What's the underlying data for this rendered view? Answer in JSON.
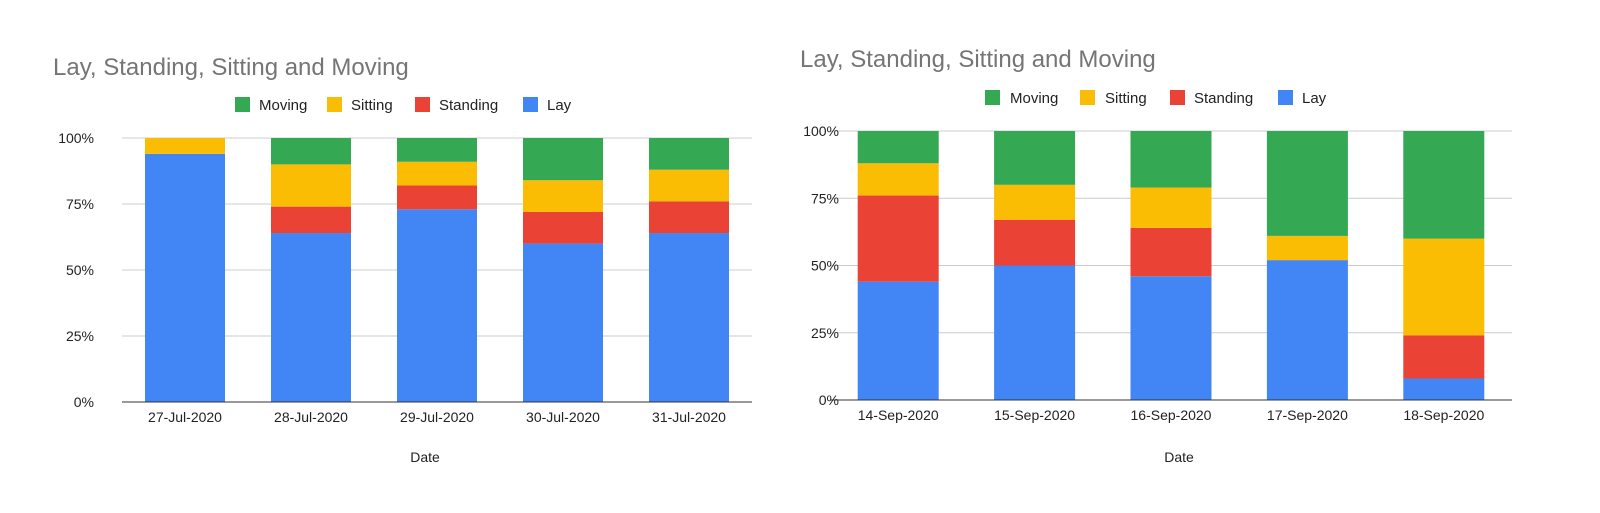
{
  "colors": {
    "Lay": "#4285F4",
    "Standing": "#EA4335",
    "Sitting": "#FBBC04",
    "Moving": "#34A853",
    "grid": "#cccccc",
    "axis": "#333333"
  },
  "chart_data": [
    {
      "type": "bar",
      "stacked": "percent",
      "title": "Lay, Standing, Sitting and Moving",
      "xlabel": "Date",
      "ylabel": "",
      "legend": {
        "position": "top",
        "entries": [
          "Moving",
          "Sitting",
          "Standing",
          "Lay"
        ]
      },
      "y_ticks": [
        "0%",
        "25%",
        "50%",
        "75%",
        "100%"
      ],
      "ylim": [
        0,
        100
      ],
      "grid": true,
      "categories": [
        "27-Jul-2020",
        "28-Jul-2020",
        "29-Jul-2020",
        "30-Jul-2020",
        "31-Jul-2020"
      ],
      "series": [
        {
          "name": "Lay",
          "values": [
            94,
            64,
            73,
            60,
            64
          ]
        },
        {
          "name": "Standing",
          "values": [
            0,
            10,
            9,
            12,
            12
          ]
        },
        {
          "name": "Sitting",
          "values": [
            6,
            16,
            9,
            12,
            12
          ]
        },
        {
          "name": "Moving",
          "values": [
            0,
            10,
            9,
            16,
            12
          ]
        }
      ]
    },
    {
      "type": "bar",
      "stacked": "percent",
      "title": "Lay, Standing, Sitting and Moving",
      "xlabel": "Date",
      "ylabel": "",
      "legend": {
        "position": "top",
        "entries": [
          "Moving",
          "Sitting",
          "Standing",
          "Lay"
        ]
      },
      "y_ticks": [
        "0%",
        "25%",
        "50%",
        "75%",
        "100%"
      ],
      "ylim": [
        0,
        100
      ],
      "grid": true,
      "categories": [
        "14-Sep-2020",
        "15-Sep-2020",
        "16-Sep-2020",
        "17-Sep-2020",
        "18-Sep-2020"
      ],
      "series": [
        {
          "name": "Lay",
          "values": [
            44,
            50,
            46,
            52,
            8
          ]
        },
        {
          "name": "Standing",
          "values": [
            32,
            17,
            18,
            0,
            16
          ]
        },
        {
          "name": "Sitting",
          "values": [
            12,
            13,
            15,
            9,
            36
          ]
        },
        {
          "name": "Moving",
          "values": [
            12,
            20,
            21,
            39,
            40
          ]
        }
      ]
    }
  ]
}
